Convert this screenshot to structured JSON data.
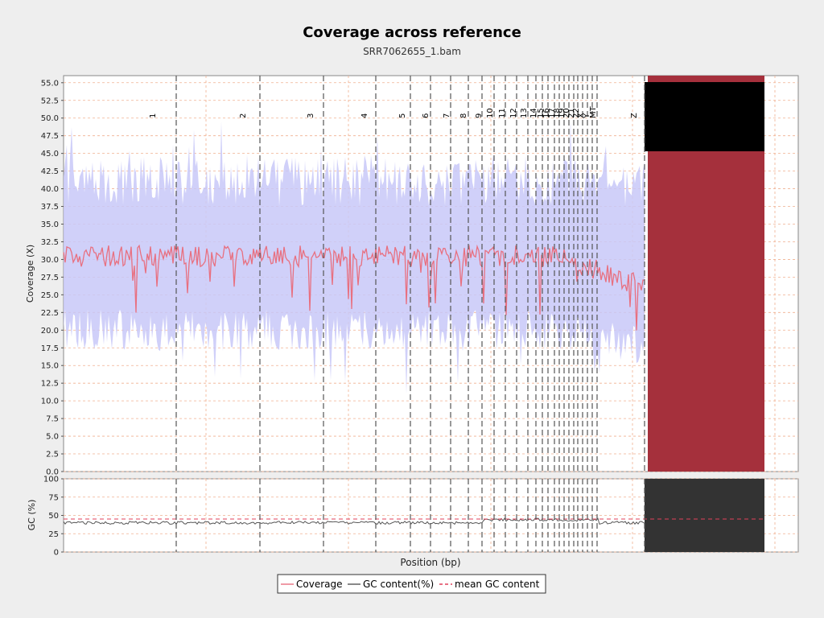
{
  "chart_data": {
    "type": "line",
    "title": "Coverage across reference",
    "subtitle": "SRR7062655_1.bam",
    "xlabel": "Position (bp)",
    "coverage_panel": {
      "ylabel": "Coverage (X)",
      "ylim": [
        0,
        56
      ],
      "yticks": [
        "0.0",
        "2.5",
        "5.0",
        "7.5",
        "10.0",
        "12.5",
        "15.0",
        "17.5",
        "20.0",
        "22.5",
        "25.0",
        "27.5",
        "30.0",
        "32.5",
        "35.0",
        "37.5",
        "40.0",
        "42.5",
        "45.0",
        "47.5",
        "50.0",
        "52.5",
        "55.0"
      ],
      "mean_coverage_level": 30.5,
      "band_low": 20,
      "band_high": 41
    },
    "gc_panel": {
      "ylabel": "GC (%)",
      "ylim": [
        0,
        100
      ],
      "yticks": [
        "0",
        "25",
        "50",
        "75",
        "100"
      ],
      "mean_gc": 45,
      "gc_level": 40
    },
    "contigs": [
      "1",
      "2",
      "3",
      "4",
      "5",
      "6",
      "7",
      "8",
      "9",
      "10",
      "11",
      "12",
      "13",
      "14",
      "15",
      "16",
      "17",
      "18",
      "19",
      "20",
      "21",
      "22",
      "X",
      "Y",
      "MT",
      "Z"
    ],
    "legend": [
      {
        "label": "Coverage",
        "color": "#e87080",
        "style": "solid"
      },
      {
        "label": "GC content(%)",
        "color": "#555555",
        "style": "solid"
      },
      {
        "label": "mean GC content",
        "color": "#e0405a",
        "style": "dashed"
      }
    ],
    "colors": {
      "coverage": "#e87080",
      "band": "#c8c8f8",
      "gc": "#555555",
      "mean_gc": "#e0405a",
      "unplaced_block": "#a5303c",
      "grid": "#f0b090"
    },
    "grid": true,
    "legend_position": "bottom-center"
  }
}
